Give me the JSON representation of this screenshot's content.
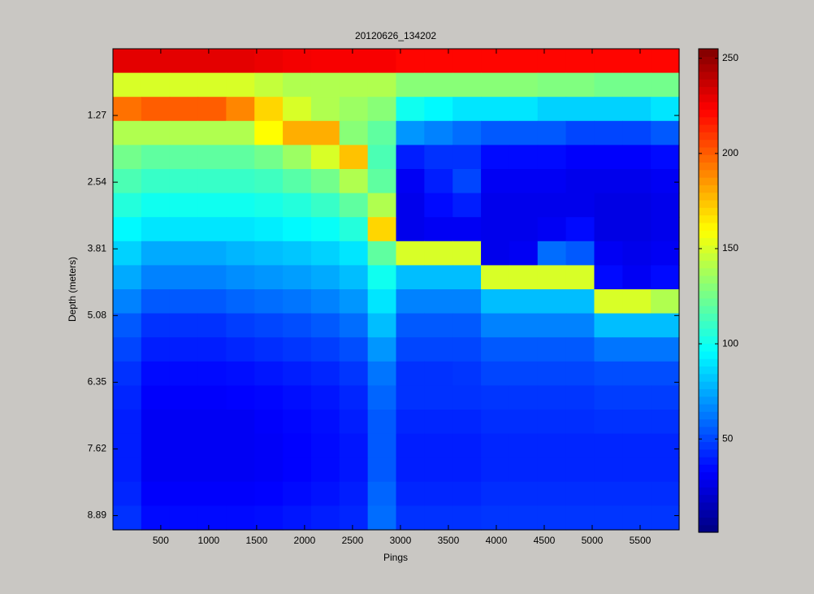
{
  "chart_data": {
    "type": "heatmap",
    "title": "20120626_134202",
    "x_label": "Pings",
    "y_label": "Depth (meters)",
    "xlim": [
      1,
      5907
    ],
    "ylim": [
      0,
      9.16
    ],
    "y_reversed": true,
    "xticks": [
      500,
      1000,
      1500,
      2000,
      2500,
      3000,
      3500,
      4000,
      4500,
      5000,
      5500
    ],
    "yticks": [
      1.27,
      2.54,
      3.81,
      5.08,
      6.35,
      7.62,
      8.89
    ],
    "colormap": "jet",
    "zlim": [
      1,
      255
    ],
    "zticks": [
      50,
      100,
      150,
      200,
      250
    ],
    "z": [
      [
        230,
        230,
        230,
        230,
        230,
        228,
        226,
        225,
        225,
        225,
        222,
        222,
        222,
        222,
        222,
        222,
        222,
        222,
        222,
        222
      ],
      [
        150,
        150,
        150,
        150,
        150,
        145,
        140,
        140,
        140,
        140,
        130,
        130,
        130,
        130,
        130,
        128,
        128,
        125,
        125,
        125
      ],
      [
        195,
        200,
        200,
        200,
        190,
        170,
        150,
        140,
        135,
        130,
        100,
        95,
        90,
        90,
        90,
        85,
        85,
        85,
        85,
        90
      ],
      [
        140,
        140,
        140,
        140,
        140,
        160,
        180,
        180,
        130,
        120,
        70,
        65,
        60,
        55,
        55,
        55,
        50,
        50,
        50,
        55
      ],
      [
        125,
        120,
        120,
        120,
        120,
        125,
        135,
        150,
        175,
        115,
        40,
        45,
        45,
        35,
        35,
        35,
        32,
        32,
        32,
        35
      ],
      [
        115,
        110,
        110,
        110,
        110,
        112,
        118,
        125,
        140,
        120,
        30,
        40,
        50,
        30,
        30,
        30,
        28,
        28,
        28,
        30
      ],
      [
        105,
        100,
        100,
        100,
        100,
        102,
        105,
        110,
        120,
        140,
        28,
        35,
        40,
        28,
        28,
        28,
        28,
        26,
        26,
        28
      ],
      [
        95,
        90,
        90,
        90,
        90,
        92,
        95,
        98,
        105,
        170,
        28,
        30,
        30,
        28,
        28,
        30,
        35,
        26,
        26,
        28
      ],
      [
        85,
        75,
        75,
        75,
        78,
        80,
        82,
        85,
        90,
        120,
        150,
        150,
        150,
        28,
        30,
        60,
        55,
        30,
        28,
        30
      ],
      [
        75,
        65,
        65,
        65,
        68,
        70,
        72,
        75,
        80,
        100,
        80,
        80,
        80,
        150,
        150,
        150,
        150,
        35,
        30,
        35
      ],
      [
        65,
        55,
        55,
        55,
        58,
        60,
        62,
        65,
        70,
        90,
        65,
        65,
        65,
        80,
        80,
        80,
        80,
        150,
        150,
        140
      ],
      [
        55,
        45,
        45,
        45,
        48,
        50,
        52,
        55,
        60,
        80,
        55,
        55,
        55,
        65,
        65,
        65,
        65,
        80,
        80,
        80
      ],
      [
        50,
        40,
        40,
        40,
        42,
        44,
        46,
        48,
        52,
        70,
        50,
        50,
        50,
        55,
        55,
        55,
        55,
        62,
        62,
        62
      ],
      [
        45,
        35,
        35,
        35,
        36,
        38,
        40,
        42,
        46,
        62,
        45,
        45,
        46,
        50,
        50,
        50,
        50,
        52,
        52,
        52
      ],
      [
        42,
        32,
        32,
        32,
        33,
        34,
        36,
        38,
        42,
        58,
        45,
        45,
        45,
        46,
        46,
        46,
        46,
        48,
        48,
        48
      ],
      [
        40,
        30,
        30,
        30,
        30,
        32,
        34,
        36,
        40,
        55,
        42,
        42,
        42,
        44,
        44,
        44,
        44,
        45,
        45,
        45
      ],
      [
        40,
        30,
        30,
        30,
        30,
        31,
        33,
        35,
        38,
        55,
        40,
        40,
        40,
        42,
        42,
        42,
        42,
        42,
        42,
        42
      ],
      [
        40,
        30,
        30,
        30,
        30,
        31,
        33,
        35,
        38,
        55,
        40,
        40,
        40,
        42,
        42,
        42,
        42,
        42,
        42,
        42
      ],
      [
        42,
        32,
        32,
        32,
        32,
        33,
        35,
        37,
        40,
        58,
        42,
        42,
        42,
        44,
        44,
        44,
        44,
        44,
        44,
        44
      ],
      [
        45,
        35,
        35,
        35,
        35,
        36,
        38,
        40,
        42,
        60,
        45,
        45,
        45,
        46,
        46,
        46,
        46,
        46,
        46,
        46
      ]
    ]
  }
}
